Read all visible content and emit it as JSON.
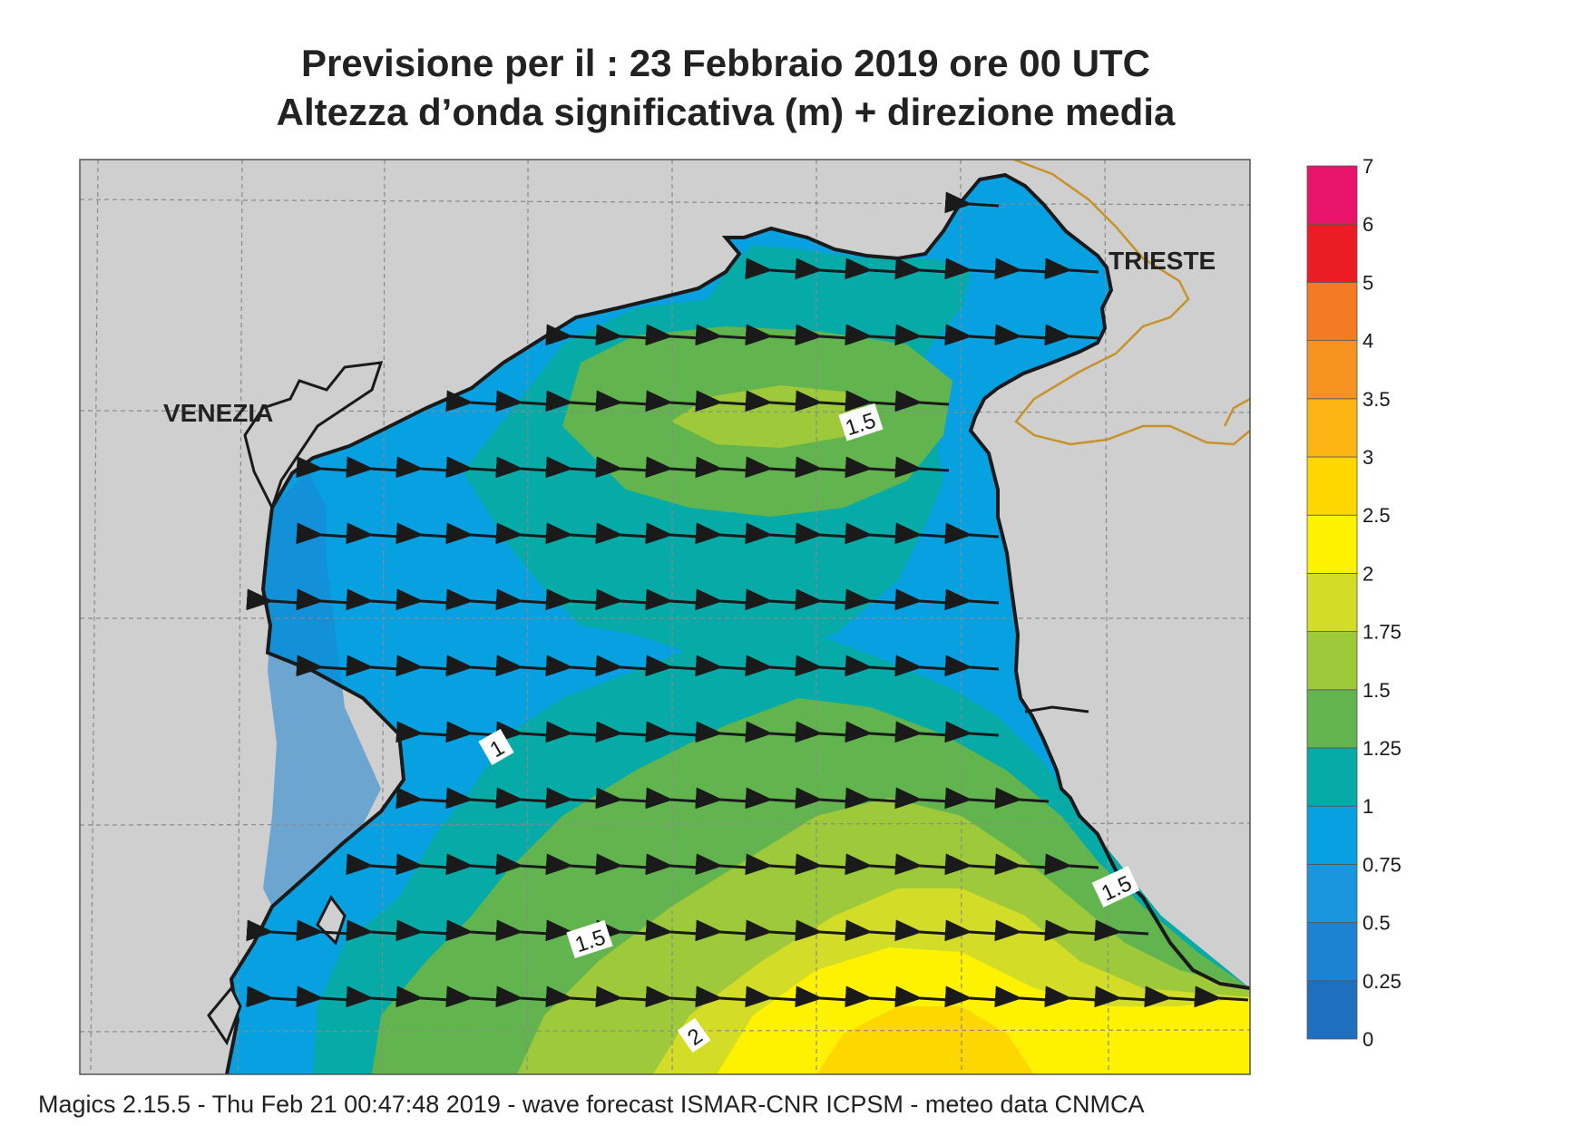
{
  "title": {
    "line1": "Previsione per il  :  23  Febbraio 2019   ore 00 UTC",
    "line2": "Altezza d’onda significativa (m) + direzione media"
  },
  "map": {
    "cities": [
      "VENEZIA",
      "TRIESTE"
    ],
    "contour_labels": [
      "1.5",
      "1",
      "1.5",
      "1.5",
      "2"
    ],
    "wave_direction": "west"
  },
  "legend": {
    "levels": [
      "0",
      "0.25",
      "0.5",
      "0.75",
      "1",
      "1.25",
      "1.5",
      "1.75",
      "2",
      "2.5",
      "3",
      "3.5",
      "4",
      "5",
      "6",
      "7"
    ],
    "colors": [
      "#1f6fc0",
      "#1b83d2",
      "#1996de",
      "#07a0e0",
      "#06aaa6",
      "#62b54e",
      "#9ec93b",
      "#d3dd27",
      "#fff200",
      "#ffd700",
      "#fdb515",
      "#f79320",
      "#f57a24",
      "#ec1c24",
      "#e8136b"
    ]
  },
  "colors": {
    "land": "#cfcfcf",
    "coast": "#1a1a1a",
    "border": "#c8922a"
  },
  "footer": "Magics 2.15.5 - Thu Feb 21 00:47:48 2019 - wave forecast  ISMAR-CNR  ICPSM - meteo data   CNMCA"
}
